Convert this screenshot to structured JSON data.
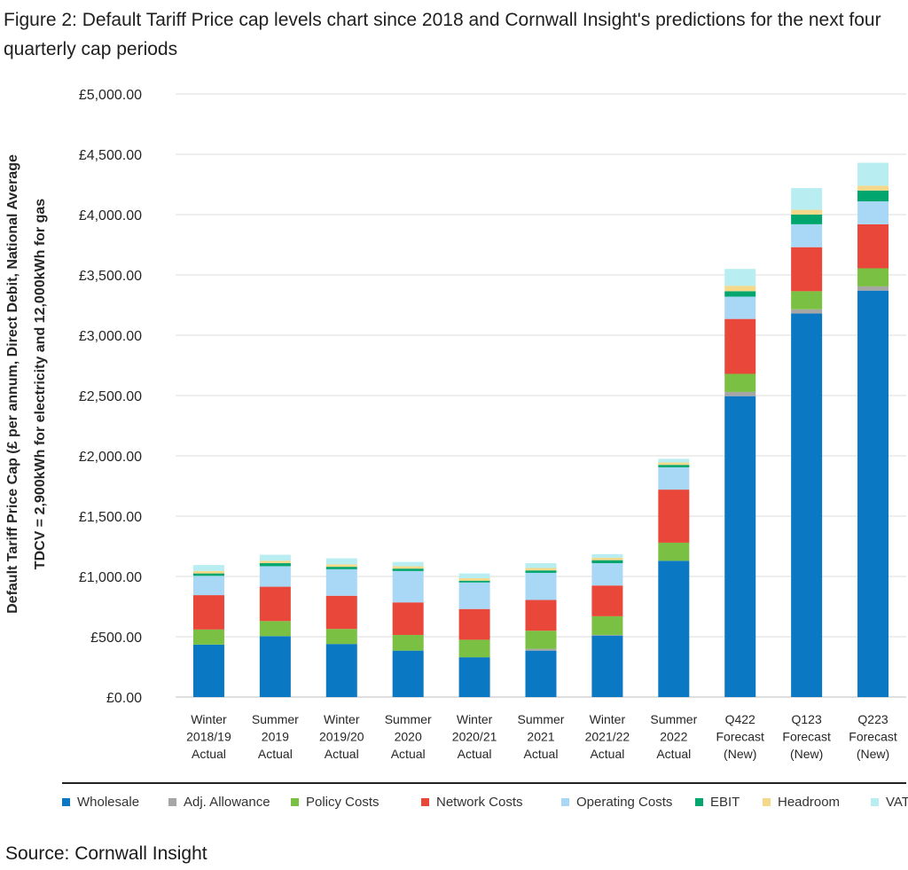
{
  "title": "Figure 2: Default Tariff Price cap levels chart since 2018 and Cornwall Insight's predictions for the next four quarterly cap periods",
  "source": "Source: Cornwall Insight",
  "chart_data": {
    "type": "bar",
    "stacked": true,
    "ylabel_line1": "Default Tariff Price Cap (£ per annum, Direct Debit, National Average",
    "ylabel_line2": "TDCV = 2,900kWh for electricity and 12,000kWh for gas",
    "ylim": [
      0,
      5000
    ],
    "yticks": [
      "£0.00",
      "£500.00",
      "£1,000.00",
      "£1,500.00",
      "£2,000.00",
      "£2,500.00",
      "£3,000.00",
      "£3,500.00",
      "£4,000.00",
      "£4,500.00",
      "£5,000.00"
    ],
    "grid": true,
    "legend_position": "bottom",
    "categories": [
      [
        "Winter",
        "2018/19",
        "Actual"
      ],
      [
        "Summer",
        "2019",
        "Actual"
      ],
      [
        "Winter",
        "2019/20",
        "Actual"
      ],
      [
        "Summer",
        "2020",
        "Actual"
      ],
      [
        "Winter",
        "2020/21",
        "Actual"
      ],
      [
        "Summer",
        "2021",
        "Actual"
      ],
      [
        "Winter",
        "2021/22",
        "Actual"
      ],
      [
        "Summer",
        "2022",
        "Actual"
      ],
      [
        "Q422",
        "Forecast",
        "(New)"
      ],
      [
        "Q123",
        "Forecast",
        "(New)"
      ],
      [
        "Q223",
        "Forecast",
        "(New)"
      ]
    ],
    "series": [
      {
        "name": "Wholesale",
        "color": "#0a78c2",
        "values": [
          435,
          505,
          440,
          385,
          330,
          385,
          510,
          1130,
          2495,
          3180,
          3370
        ]
      },
      {
        "name": "Adj. Allowance",
        "color": "#a6a6a6",
        "values": [
          0,
          0,
          0,
          0,
          0,
          15,
          5,
          0,
          35,
          35,
          35
        ]
      },
      {
        "name": "Policy Costs",
        "color": "#7ac143",
        "values": [
          125,
          125,
          125,
          130,
          145,
          150,
          155,
          150,
          150,
          150,
          150
        ]
      },
      {
        "name": "Network Costs",
        "color": "#e8473a",
        "values": [
          285,
          285,
          275,
          270,
          255,
          255,
          255,
          440,
          455,
          365,
          365
        ]
      },
      {
        "name": "Operating Costs",
        "color": "#a9d8f7",
        "values": [
          160,
          170,
          220,
          260,
          220,
          225,
          185,
          185,
          185,
          190,
          190
        ]
      },
      {
        "name": "EBIT",
        "color": "#00a66e",
        "values": [
          20,
          25,
          20,
          20,
          15,
          20,
          25,
          20,
          45,
          80,
          90
        ]
      },
      {
        "name": "Headroom",
        "color": "#f4d98a",
        "values": [
          20,
          20,
          20,
          20,
          20,
          20,
          20,
          20,
          45,
          40,
          40
        ]
      },
      {
        "name": "VAT",
        "color": "#b8eef1",
        "values": [
          50,
          50,
          50,
          35,
          40,
          40,
          30,
          30,
          140,
          180,
          190
        ]
      }
    ]
  }
}
